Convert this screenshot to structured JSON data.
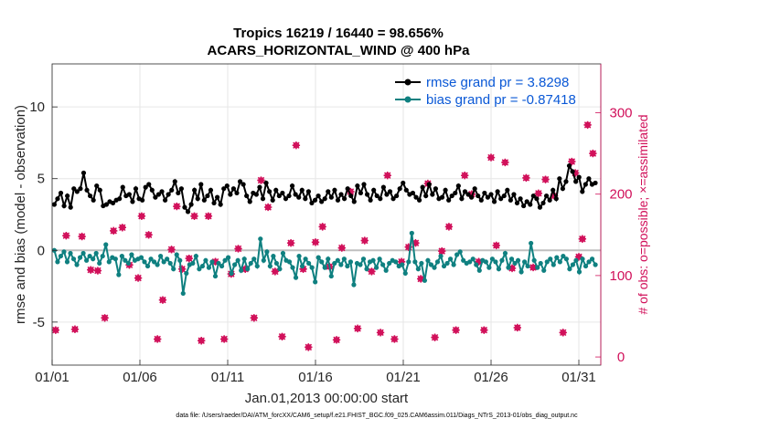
{
  "chart_data": {
    "type": "line",
    "title": "Tropics 16219 / 16440 = 98.656%",
    "subtitle": "ACARS_HORIZONTAL_WIND @ 400 hPa",
    "xlabel": "Jan.01,2013 00:00:00 start",
    "ylabel": "rmse and bias (model - observation)",
    "ylabel_right": "# of obs: o=possible; ×=assimilated",
    "footnote": "data file: /Users/raeder/DAI/ATM_forcXX/CAM6_setup/f.e21.FHIST_BGC.f09_025.CAM6assim.011/Diags_NTrS_2013-01/obs_diag_output.nc",
    "x_tick_labels": [
      "01/01",
      "01/06",
      "01/11",
      "01/16",
      "01/21",
      "01/26",
      "01/31"
    ],
    "x_tick_days": [
      1,
      6,
      11,
      16,
      21,
      26,
      31
    ],
    "xlim": [
      1,
      32.25
    ],
    "ylim": [
      -8,
      13
    ],
    "y_ticks": [
      -5,
      0,
      5,
      10
    ],
    "y_tick_labels": [
      "-5",
      "0",
      "5",
      "10"
    ],
    "ylim_right": [
      -10,
      360
    ],
    "y_ticks_right": [
      0,
      100,
      200,
      300
    ],
    "y_tick_labels_right": [
      "0",
      "100",
      "200",
      "300"
    ],
    "colors": {
      "rmse": "#000000",
      "bias": "#0f8080",
      "obs": "#d1105a",
      "legend_text": "#0a58d6",
      "zero_line": "#bfbfbf"
    },
    "series": [
      {
        "name": "rmse grand pr = 3.8298",
        "color": "#000000",
        "values": [
          3.2,
          3.6,
          4.0,
          3.1,
          3.8,
          3.0,
          4.3,
          4.1,
          4.3,
          5.4,
          4.2,
          3.8,
          3.5,
          4.5,
          4.2,
          3.1,
          3.2,
          3.4,
          3.3,
          3.5,
          3.6,
          4.4,
          3.8,
          3.9,
          3.4,
          4.3,
          3.6,
          3.5,
          4.4,
          4.6,
          4.2,
          3.7,
          3.9,
          4.1,
          3.5,
          3.9,
          4.2,
          4.8,
          4.0,
          4.3,
          3.0,
          2.7,
          3.2,
          4.2,
          3.6,
          4.6,
          3.5,
          3.8,
          4.2,
          3.3,
          3.7,
          3.2,
          4.3,
          4.5,
          3.9,
          4.3,
          4.0,
          4.8,
          4.6,
          3.8,
          3.4,
          4.0,
          3.9,
          4.4,
          3.6,
          4.7,
          4.1,
          3.5,
          4.2,
          3.8,
          4.0,
          3.6,
          3.8,
          4.5,
          3.9,
          3.7,
          4.2,
          3.6,
          4.1,
          3.3,
          3.5,
          3.8,
          3.4,
          3.6,
          4.1,
          3.7,
          4.2,
          3.5,
          3.9,
          3.6,
          4.3,
          3.8,
          3.4,
          4.5,
          4.0,
          4.6,
          3.9,
          3.5,
          4.2,
          3.8,
          3.6,
          4.4,
          3.9,
          4.1,
          3.6,
          3.8,
          4.3,
          4.7,
          4.2,
          3.9,
          4.0,
          3.7,
          3.5,
          4.4,
          3.8,
          4.6,
          3.9,
          4.3,
          3.6,
          3.7,
          4.2,
          3.5,
          3.8,
          4.0,
          4.5,
          3.6,
          4.1,
          3.9,
          3.7,
          4.3,
          3.8,
          3.5,
          4.0,
          3.7,
          3.9,
          3.4,
          4.1,
          3.6,
          3.8,
          4.2,
          3.5,
          3.9,
          3.3,
          3.6,
          3.1,
          3.4,
          3.2,
          3.8,
          3.6,
          3.0,
          3.3,
          3.8,
          3.5,
          4.2,
          3.6,
          5.0,
          4.3,
          4.8,
          5.9,
          5.5,
          4.8,
          5.1,
          4.1,
          4.6,
          5.0,
          4.6,
          4.7
        ]
      },
      {
        "name": "bias grand pr = -0.87418",
        "color": "#0f8080",
        "values": [
          0.0,
          -0.8,
          -0.4,
          -0.1,
          -0.8,
          -0.2,
          -0.6,
          -1.0,
          -0.5,
          -0.2,
          -0.7,
          -0.4,
          -0.6,
          -0.2,
          -0.9,
          -0.4,
          0.4,
          -0.8,
          -0.5,
          -0.6,
          -1.7,
          -0.4,
          -0.7,
          -0.9,
          -0.3,
          -0.7,
          -0.6,
          -0.5,
          -0.8,
          -1.1,
          -0.6,
          -0.8,
          -1.0,
          -0.4,
          -0.8,
          -0.6,
          -0.9,
          -1.3,
          -0.3,
          -0.7,
          -3.0,
          -1.6,
          -1.0,
          -0.9,
          -0.4,
          -1.3,
          -1.1,
          -0.7,
          -1.2,
          -0.8,
          -1.8,
          -0.9,
          -1.1,
          -0.7,
          -0.5,
          -1.6,
          -1.0,
          -0.7,
          -1.4,
          -0.6,
          -1.3,
          -0.9,
          -0.6,
          -1.1,
          0.8,
          -0.7,
          -0.1,
          -1.1,
          -0.4,
          -0.9,
          -1.3,
          -0.2,
          -0.7,
          -0.8,
          -1.2,
          -1.9,
          -0.4,
          -1.1,
          -0.6,
          -0.9,
          -1.2,
          -2.2,
          -0.5,
          -0.8,
          -1.2,
          -0.6,
          -1.8,
          -0.9,
          -0.7,
          -1.0,
          -0.6,
          -1.1,
          -0.8,
          -2.4,
          -0.9,
          -1.0,
          -0.6,
          -1.3,
          -0.8,
          -0.7,
          -1.2,
          -0.6,
          -1.0,
          -1.4,
          -0.9,
          -0.7,
          -0.8,
          -1.1,
          -1.0,
          -1.6,
          -0.8,
          1.2,
          -0.8,
          -1.3,
          -0.9,
          -2.1,
          -0.7,
          -1.0,
          -1.2,
          -0.8,
          -0.4,
          -1.1,
          -0.9,
          -0.6,
          -1.0,
          -0.3,
          -0.1,
          -0.7,
          -0.9,
          -0.8,
          -0.6,
          -1.0,
          -1.4,
          -0.7,
          -0.8,
          -1.2,
          -0.6,
          -0.8,
          -1.3,
          -0.7,
          -0.2,
          -1.2,
          -0.6,
          -0.9,
          -0.7,
          -1.5,
          -0.8,
          -1.1,
          0.5,
          -0.7,
          -1.2,
          -0.9,
          -1.4,
          -0.8,
          -0.6,
          -1.0,
          -0.5,
          -0.8,
          -0.4,
          -0.6,
          -1.3,
          -1.0,
          -0.7,
          -1.5,
          -0.6,
          -1.1,
          -0.8,
          -0.6,
          -1.0
        ]
      }
    ],
    "obs_possible": [
      [
        1.2,
        33
      ],
      [
        1.8,
        149
      ],
      [
        2.3,
        34
      ],
      [
        2.7,
        148
      ],
      [
        3.2,
        107
      ],
      [
        3.6,
        106
      ],
      [
        4.0,
        48
      ],
      [
        4.5,
        155
      ],
      [
        5.0,
        159
      ],
      [
        5.4,
        113
      ],
      [
        5.9,
        97
      ],
      [
        6.1,
        173
      ],
      [
        6.5,
        150
      ],
      [
        7.0,
        22
      ],
      [
        7.3,
        70
      ],
      [
        7.8,
        132
      ],
      [
        8.1,
        185
      ],
      [
        8.4,
        108
      ],
      [
        8.8,
        121
      ],
      [
        9.1,
        173
      ],
      [
        9.5,
        20
      ],
      [
        9.9,
        173
      ],
      [
        10.3,
        117
      ],
      [
        10.8,
        22
      ],
      [
        11.2,
        102
      ],
      [
        11.6,
        133
      ],
      [
        12.0,
        108
      ],
      [
        12.5,
        48
      ],
      [
        12.9,
        217
      ],
      [
        13.3,
        184
      ],
      [
        13.7,
        105
      ],
      [
        14.1,
        25
      ],
      [
        14.6,
        140
      ],
      [
        14.9,
        260
      ],
      [
        15.3,
        108
      ],
      [
        15.6,
        12
      ],
      [
        16.0,
        141
      ],
      [
        16.4,
        160
      ],
      [
        16.8,
        111
      ],
      [
        17.2,
        21
      ],
      [
        17.5,
        134
      ],
      [
        18.0,
        203
      ],
      [
        18.4,
        35
      ],
      [
        18.8,
        143
      ],
      [
        19.2,
        105
      ],
      [
        19.7,
        30
      ],
      [
        20.1,
        223
      ],
      [
        20.5,
        22
      ],
      [
        20.9,
        117
      ],
      [
        21.3,
        135
      ],
      [
        21.7,
        140
      ],
      [
        22.0,
        96
      ],
      [
        22.4,
        213
      ],
      [
        22.8,
        24
      ],
      [
        23.2,
        130
      ],
      [
        23.6,
        160
      ],
      [
        24.0,
        33
      ],
      [
        24.5,
        223
      ],
      [
        24.9,
        200
      ],
      [
        25.3,
        117
      ],
      [
        25.6,
        33
      ],
      [
        26.0,
        245
      ],
      [
        26.3,
        137
      ],
      [
        26.8,
        239
      ],
      [
        27.2,
        109
      ],
      [
        27.5,
        36
      ],
      [
        28.0,
        220
      ],
      [
        28.4,
        110
      ],
      [
        28.7,
        201
      ],
      [
        29.1,
        218
      ],
      [
        29.6,
        198
      ],
      [
        30.1,
        30
      ],
      [
        30.6,
        240
      ],
      [
        30.8,
        226
      ],
      [
        31.0,
        123
      ],
      [
        31.2,
        145
      ],
      [
        31.5,
        285
      ],
      [
        31.8,
        250
      ]
    ],
    "obs_assimilated": [
      [
        1.2,
        33
      ],
      [
        1.8,
        149
      ],
      [
        2.3,
        34
      ],
      [
        2.7,
        148
      ],
      [
        3.2,
        107
      ],
      [
        3.6,
        106
      ],
      [
        4.0,
        48
      ],
      [
        4.5,
        155
      ],
      [
        5.0,
        159
      ],
      [
        5.4,
        113
      ],
      [
        5.9,
        97
      ],
      [
        6.1,
        173
      ],
      [
        6.5,
        150
      ],
      [
        7.0,
        22
      ],
      [
        7.3,
        70
      ],
      [
        7.8,
        132
      ],
      [
        8.1,
        185
      ],
      [
        8.4,
        108
      ],
      [
        8.8,
        121
      ],
      [
        9.1,
        173
      ],
      [
        9.5,
        20
      ],
      [
        9.9,
        173
      ],
      [
        10.3,
        117
      ],
      [
        10.8,
        22
      ],
      [
        11.2,
        102
      ],
      [
        11.6,
        133
      ],
      [
        12.0,
        108
      ],
      [
        12.5,
        48
      ],
      [
        12.9,
        217
      ],
      [
        13.3,
        184
      ],
      [
        13.7,
        105
      ],
      [
        14.1,
        25
      ],
      [
        14.6,
        140
      ],
      [
        14.9,
        260
      ],
      [
        15.3,
        108
      ],
      [
        15.6,
        12
      ],
      [
        16.0,
        141
      ],
      [
        16.4,
        160
      ],
      [
        16.8,
        111
      ],
      [
        17.2,
        21
      ],
      [
        17.5,
        134
      ],
      [
        18.0,
        203
      ],
      [
        18.4,
        35
      ],
      [
        18.8,
        143
      ],
      [
        19.2,
        105
      ],
      [
        19.7,
        30
      ],
      [
        20.1,
        223
      ],
      [
        20.5,
        22
      ],
      [
        20.9,
        117
      ],
      [
        21.3,
        135
      ],
      [
        21.7,
        140
      ],
      [
        22.0,
        96
      ],
      [
        22.4,
        213
      ],
      [
        22.8,
        24
      ],
      [
        23.2,
        130
      ],
      [
        23.6,
        160
      ],
      [
        24.0,
        33
      ],
      [
        24.5,
        223
      ],
      [
        24.9,
        200
      ],
      [
        25.3,
        117
      ],
      [
        25.6,
        33
      ],
      [
        26.0,
        245
      ],
      [
        26.3,
        137
      ],
      [
        26.8,
        239
      ],
      [
        27.2,
        109
      ],
      [
        27.5,
        36
      ],
      [
        28.0,
        220
      ],
      [
        28.4,
        110
      ],
      [
        28.7,
        201
      ],
      [
        29.1,
        218
      ],
      [
        29.6,
        198
      ],
      [
        30.1,
        30
      ],
      [
        30.6,
        240
      ],
      [
        30.8,
        226
      ],
      [
        31.0,
        123
      ],
      [
        31.2,
        145
      ],
      [
        31.5,
        285
      ],
      [
        31.8,
        250
      ]
    ]
  }
}
